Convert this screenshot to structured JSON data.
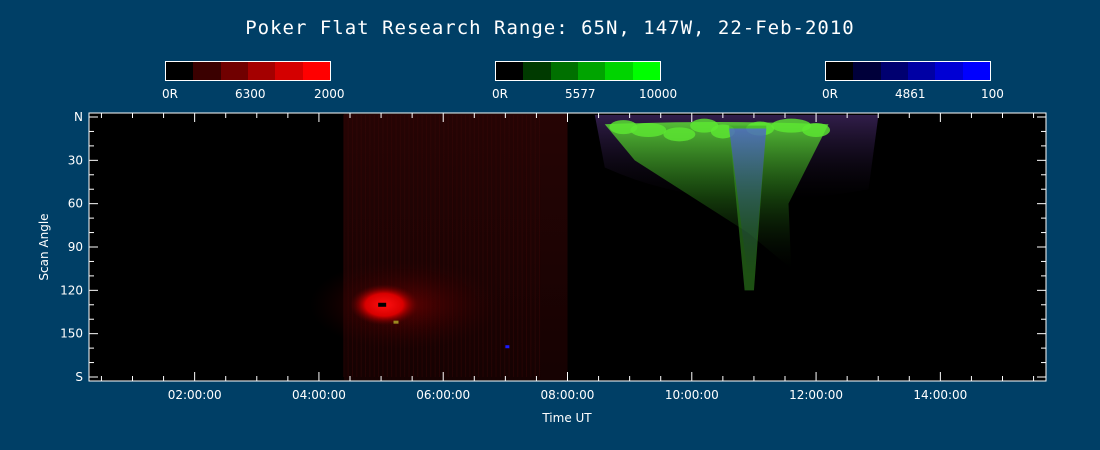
{
  "title": "Poker Flat Research Range: 65N, 147W, 22-Feb-2010",
  "colorbars": [
    {
      "min_label": "0R",
      "mid_label": "6300",
      "max_label": "2000",
      "colors": [
        "#000000",
        "#3a0000",
        "#700000",
        "#a40000",
        "#d40000",
        "#ff0000"
      ]
    },
    {
      "min_label": "0R",
      "mid_label": "5577",
      "max_label": "10000",
      "colors": [
        "#000000",
        "#003a00",
        "#007000",
        "#00a400",
        "#00d400",
        "#00ff00"
      ]
    },
    {
      "min_label": "0R",
      "mid_label": "4861",
      "max_label": "100",
      "colors": [
        "#000000",
        "#00003a",
        "#000070",
        "#0000a4",
        "#0000d4",
        "#0000ff"
      ]
    }
  ],
  "chart_data": {
    "type": "heatmap",
    "title": "Poker Flat Research Range: 65N, 147W, 22-Feb-2010",
    "xlabel": "Time UT",
    "ylabel": "Scan Angle",
    "x_ticks": [
      "02:00:00",
      "04:00:00",
      "06:00:00",
      "08:00:00",
      "10:00:00",
      "12:00:00",
      "14:00:00"
    ],
    "x_tick_hours": [
      2,
      4,
      6,
      8,
      10,
      12,
      14
    ],
    "xlim_hours": [
      0.3,
      15.7
    ],
    "y_ticks": [
      "N",
      "30",
      "60",
      "90",
      "120",
      "150",
      "S"
    ],
    "y_tick_values": [
      0,
      30,
      60,
      90,
      120,
      150,
      180
    ],
    "ylim": [
      0,
      180
    ],
    "data_start_hour": 4.4,
    "features": [
      {
        "channel": "6300",
        "color": "red",
        "time_start_hour": 4.5,
        "time_end_hour": 5.6,
        "scan_angle_center": 130,
        "scan_angle_span": 20,
        "intensity": "strong"
      },
      {
        "channel": "5577",
        "color": "green",
        "time_start_hour": 8.6,
        "time_end_hour": 12.2,
        "scan_angle_center": 12,
        "scan_angle_span": 20,
        "intensity": "strong"
      },
      {
        "channel": "4861",
        "color": "blue",
        "time_start_hour": 10.6,
        "time_end_hour": 11.2,
        "scan_angle_center": 60,
        "scan_angle_span": 80,
        "intensity": "moderate"
      }
    ]
  }
}
